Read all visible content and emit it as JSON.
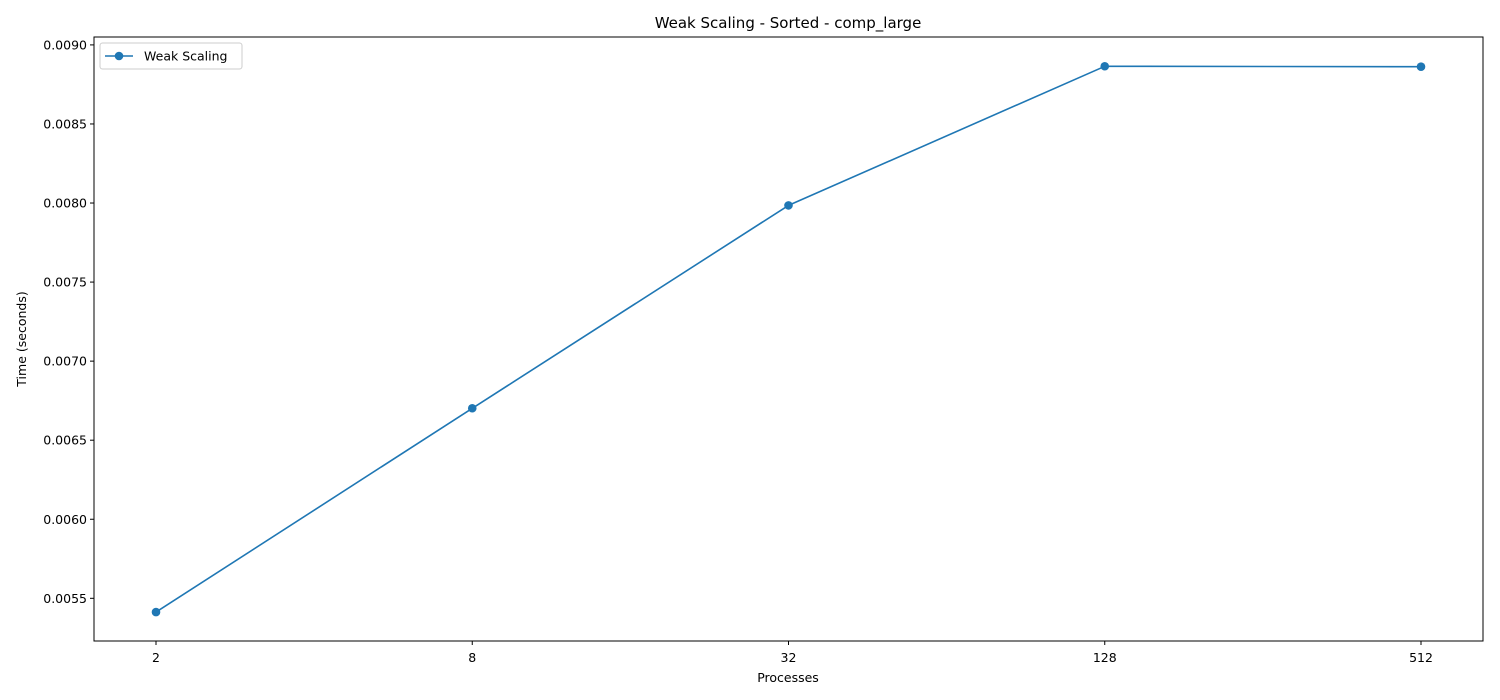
{
  "chart_data": {
    "type": "line",
    "title": "Weak Scaling - Sorted - comp_large",
    "xlabel": "Processes",
    "ylabel": "Time (seconds)",
    "x_scale": "log2",
    "categories": [
      "2",
      "8",
      "32",
      "128",
      "512"
    ],
    "x": [
      2,
      8,
      32,
      128,
      512
    ],
    "series": [
      {
        "name": "Weak Scaling",
        "color": "#1f77b4",
        "marker": "circle",
        "values": [
          0.005413,
          0.006702,
          0.007985,
          0.008865,
          0.008862
        ]
      }
    ],
    "ylim": [
      0.00523,
      0.00905
    ],
    "y_ticks": [
      0.0055,
      0.006,
      0.0065,
      0.007,
      0.0075,
      0.008,
      0.0085,
      0.009
    ],
    "y_tick_labels": [
      "0.0055",
      "0.0060",
      "0.0065",
      "0.0070",
      "0.0075",
      "0.0080",
      "0.0085",
      "0.0090"
    ],
    "grid": false,
    "legend_position": "upper-left"
  }
}
